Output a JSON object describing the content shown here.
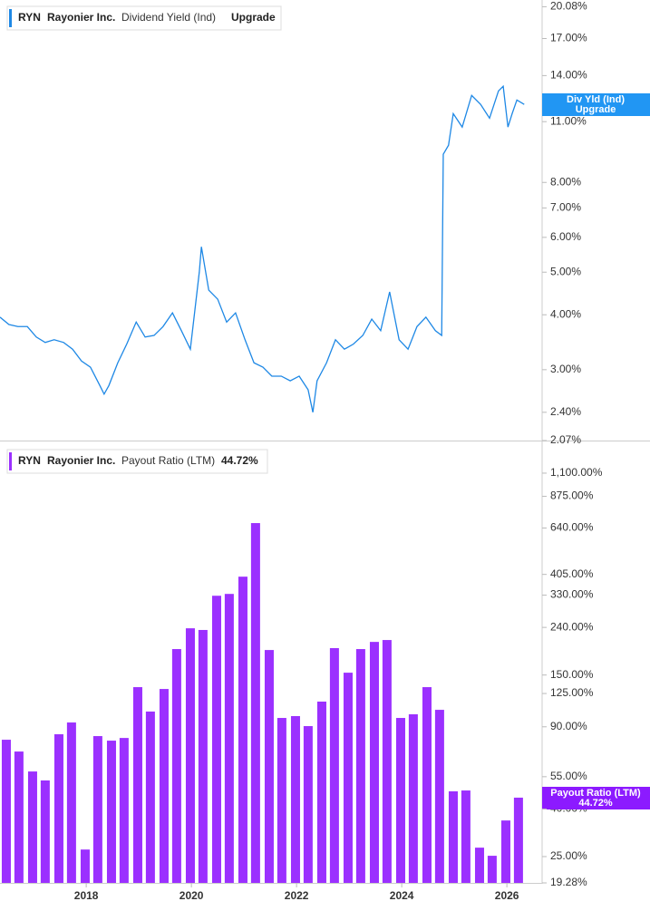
{
  "chart_data": [
    {
      "type": "line",
      "ticker": "RYN",
      "company": "Rayonier Inc.",
      "status": "Upgrade",
      "badge_label": "Div Yld (Ind)",
      "log_scale": true,
      "xlim": [
        2016.36,
        2026.67
      ],
      "ylim": [
        2.07,
        20.8
      ],
      "yticks": [
        {
          "value": 20.08,
          "label": "20.08%"
        },
        {
          "value": 17,
          "label": "17.00%"
        },
        {
          "value": 14,
          "label": "14.00%"
        },
        {
          "value": 11,
          "label": "11.00%"
        },
        {
          "value": 8,
          "label": "8.00%"
        },
        {
          "value": 7,
          "label": "7.00%"
        },
        {
          "value": 6,
          "label": "6.00%"
        },
        {
          "value": 5,
          "label": "5.00%"
        },
        {
          "value": 4,
          "label": "4.00%"
        },
        {
          "value": 3,
          "label": "3.00%"
        },
        {
          "value": 2.4,
          "label": "2.40%"
        },
        {
          "value": 2.07,
          "label": "2.07%"
        }
      ],
      "x": [
        2016.36,
        2016.53,
        2016.7,
        2016.88,
        2017.05,
        2017.22,
        2017.39,
        2017.57,
        2017.74,
        2017.91,
        2018.08,
        2018.26,
        2018.34,
        2018.43,
        2018.6,
        2018.77,
        2018.95,
        2019.12,
        2019.29,
        2019.46,
        2019.64,
        2019.81,
        2019.98,
        2020.15,
        2020.19,
        2020.33,
        2020.5,
        2020.67,
        2020.84,
        2021.02,
        2021.19,
        2021.36,
        2021.53,
        2021.71,
        2021.88,
        2022.05,
        2022.22,
        2022.31,
        2022.39,
        2022.57,
        2022.74,
        2022.91,
        2023.08,
        2023.26,
        2023.43,
        2023.6,
        2023.77,
        2023.95,
        2024.12,
        2024.29,
        2024.46,
        2024.64,
        2024.76,
        2024.79,
        2024.89,
        2024.98,
        2025.15,
        2025.33,
        2025.5,
        2025.67,
        2025.84,
        2025.93,
        2026.02,
        2026.1,
        2026.19,
        2026.33
      ],
      "series": [
        {
          "name": "Dividend Yield (Ind)",
          "color": "#1e88e5",
          "values": [
            3.95,
            3.8,
            3.76,
            3.76,
            3.56,
            3.46,
            3.51,
            3.46,
            3.34,
            3.14,
            3.04,
            2.76,
            2.64,
            2.76,
            3.11,
            3.43,
            3.85,
            3.56,
            3.59,
            3.76,
            4.04,
            3.68,
            3.34,
            5.0,
            5.71,
            4.55,
            4.34,
            3.85,
            4.04,
            3.51,
            3.11,
            3.04,
            2.9,
            2.9,
            2.83,
            2.9,
            2.7,
            2.4,
            2.83,
            3.11,
            3.51,
            3.34,
            3.43,
            3.59,
            3.91,
            3.68,
            4.51,
            3.51,
            3.34,
            3.76,
            3.95,
            3.68,
            3.59,
            9.27,
            9.72,
            11.47,
            10.69,
            12.62,
            12.04,
            11.2,
            12.92,
            13.24,
            10.69,
            11.47,
            12.32,
            12.04
          ]
        }
      ]
    },
    {
      "type": "bar",
      "ticker": "RYN",
      "company": "Rayonier Inc.",
      "log_scale": true,
      "xlim": [
        2016.36,
        2026.67
      ],
      "ylim": [
        19.28,
        1504
      ],
      "xticks": [
        2018,
        2020,
        2022,
        2024,
        2026
      ],
      "yticks": [
        {
          "value": 1100,
          "label": "1,100.00%"
        },
        {
          "value": 875,
          "label": "875.00%"
        },
        {
          "value": 640,
          "label": "640.00%"
        },
        {
          "value": 405,
          "label": "405.00%"
        },
        {
          "value": 330,
          "label": "330.00%"
        },
        {
          "value": 240,
          "label": "240.00%"
        },
        {
          "value": 150,
          "label": "150.00%"
        },
        {
          "value": 125,
          "label": "125.00%"
        },
        {
          "value": 90,
          "label": "90.00%"
        },
        {
          "value": 55,
          "label": "55.00%"
        },
        {
          "value": 40,
          "label": "40.00%"
        },
        {
          "value": 25,
          "label": "25.00%"
        },
        {
          "value": 19.28,
          "label": "19.28%"
        }
      ],
      "x": [
        2016.48,
        2016.72,
        2016.98,
        2017.22,
        2017.48,
        2017.72,
        2017.98,
        2018.22,
        2018.48,
        2018.72,
        2018.98,
        2019.22,
        2019.48,
        2019.72,
        2019.98,
        2020.22,
        2020.48,
        2020.72,
        2020.98,
        2021.22,
        2021.48,
        2021.72,
        2021.98,
        2022.22,
        2022.48,
        2022.72,
        2022.98,
        2023.22,
        2023.48,
        2023.72,
        2023.98,
        2024.22,
        2024.48,
        2024.72,
        2024.98,
        2025.22,
        2025.48,
        2025.72,
        2025.98,
        2026.22
      ],
      "series": [
        {
          "name": "Payout Ratio (LTM)",
          "color": "#9b30ff",
          "values": [
            79.2,
            70.5,
            57.9,
            53.0,
            83.6,
            93.9,
            26.8,
            82.1,
            78.5,
            80.6,
            133.1,
            104.6,
            130.7,
            193.8,
            237.9,
            234,
            328,
            334,
            396,
            672,
            192,
            98.2,
            100,
            90.6,
            115.4,
            195.6,
            153.5,
            193.8,
            208,
            211.9,
            98.2,
            101.8,
            133.1,
            106.4,
            47.6,
            48.0,
            27.3,
            25.2,
            35.7,
            44.72
          ],
          "value_labels": [
            null,
            null,
            null,
            null,
            null,
            null,
            null,
            null,
            null,
            null,
            null,
            null,
            null,
            null,
            null,
            null,
            null,
            null,
            null,
            null,
            null,
            null,
            null,
            null,
            null,
            null,
            null,
            null,
            null,
            null,
            null,
            null,
            null,
            null,
            null,
            null,
            null,
            null,
            null,
            "44.72%"
          ]
        }
      ]
    }
  ]
}
